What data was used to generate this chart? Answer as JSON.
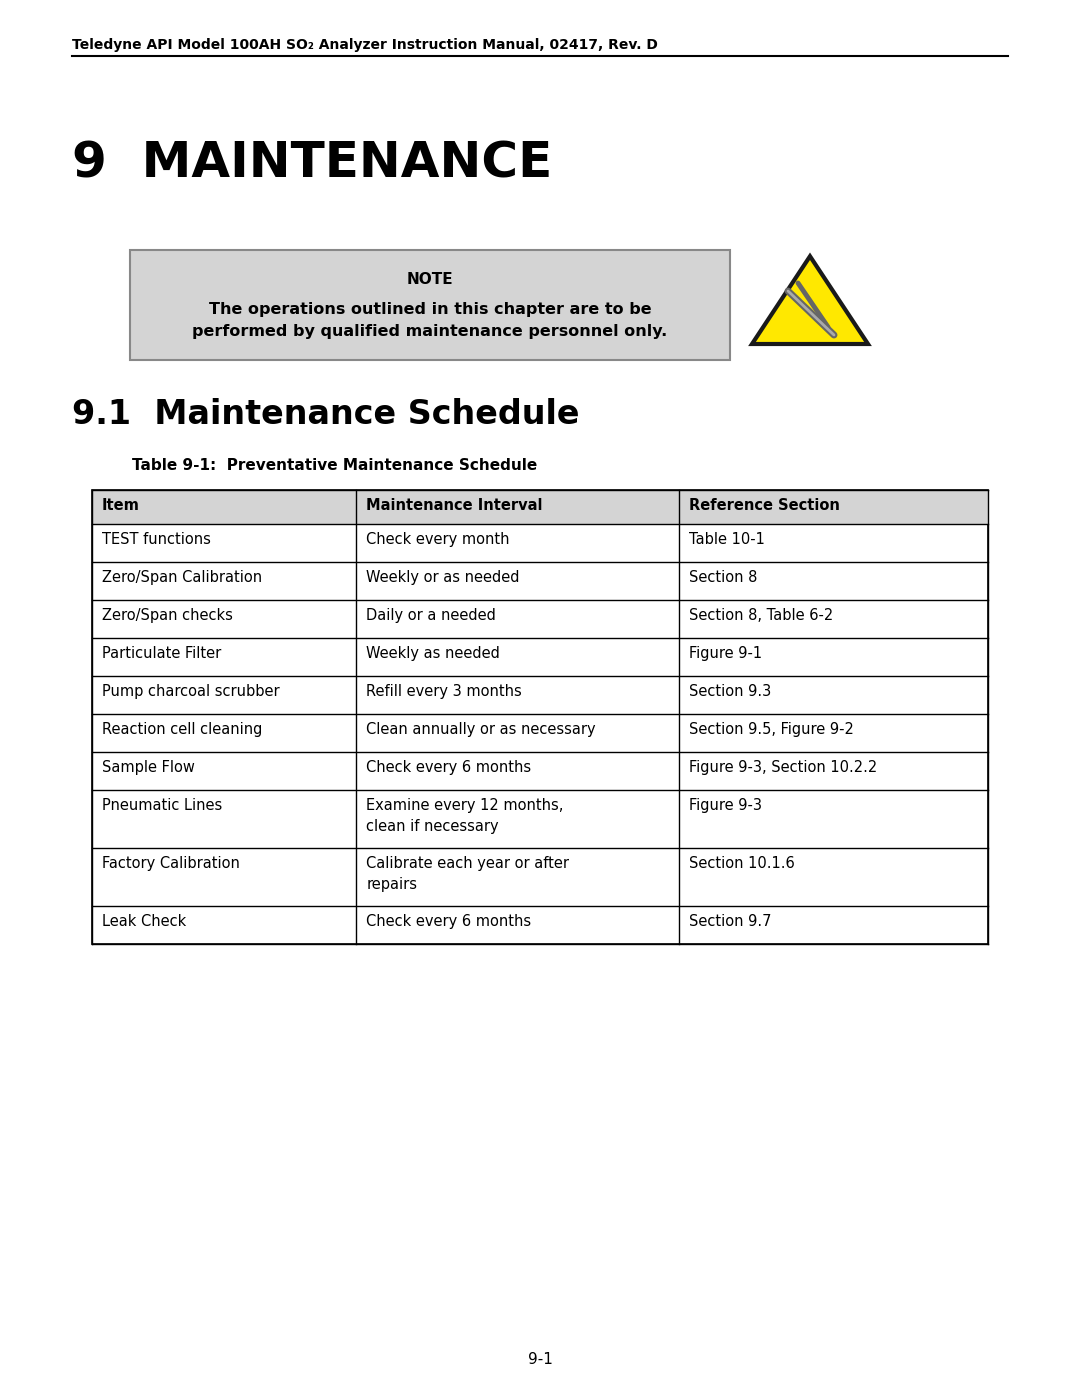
{
  "page_title_header": "Teledyne API Model 100AH SO₂ Analyzer Instruction Manual, 02417, Rev. D",
  "chapter_title": "9  MAINTENANCE",
  "note_title": "NOTE",
  "note_body": "The operations outlined in this chapter are to be\nperformed by qualified maintenance personnel only.",
  "section_title": "9.1  Maintenance Schedule",
  "table_caption": "Table 9-1:  Preventative Maintenance Schedule",
  "table_headers": [
    "Item",
    "Maintenance Interval",
    "Reference Section"
  ],
  "table_rows": [
    [
      "TEST functions",
      "Check every month",
      "Table 10-1"
    ],
    [
      "Zero/Span Calibration",
      "Weekly or as needed",
      "Section 8"
    ],
    [
      "Zero/Span checks",
      "Daily or a needed",
      "Section 8, Table 6-2"
    ],
    [
      "Particulate Filter",
      "Weekly as needed",
      "Figure 9-1"
    ],
    [
      "Pump charcoal scrubber",
      "Refill every 3 months",
      "Section 9.3"
    ],
    [
      "Reaction cell cleaning",
      "Clean annually or as necessary",
      "Section 9.5, Figure 9-2"
    ],
    [
      "Sample Flow",
      "Check every 6 months",
      "Figure 9-3, Section 10.2.2"
    ],
    [
      "Pneumatic Lines",
      "Examine every 12 months,\nclean if necessary",
      "Figure 9-3"
    ],
    [
      "Factory Calibration",
      "Calibrate each year or after\nrepairs",
      "Section 10.1.6"
    ],
    [
      "Leak Check",
      "Check every 6 months",
      "Section 9.7"
    ]
  ],
  "page_number": "9-1",
  "bg_color": "#ffffff",
  "header_bg": "#d4d4d4",
  "note_bg": "#d4d4d4",
  "text_color": "#000000"
}
